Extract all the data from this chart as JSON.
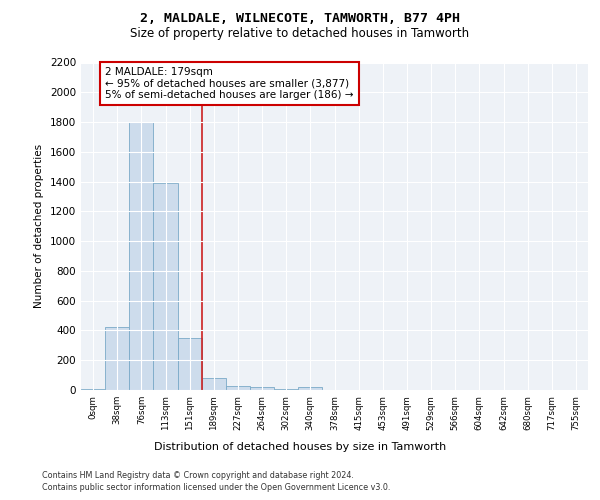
{
  "title1": "2, MALDALE, WILNECOTE, TAMWORTH, B77 4PH",
  "title2": "Size of property relative to detached houses in Tamworth",
  "xlabel": "Distribution of detached houses by size in Tamworth",
  "ylabel": "Number of detached properties",
  "bar_labels": [
    "0sqm",
    "38sqm",
    "76sqm",
    "113sqm",
    "151sqm",
    "189sqm",
    "227sqm",
    "264sqm",
    "302sqm",
    "340sqm",
    "378sqm",
    "415sqm",
    "453sqm",
    "491sqm",
    "529sqm",
    "566sqm",
    "604sqm",
    "642sqm",
    "680sqm",
    "717sqm",
    "755sqm"
  ],
  "bar_values": [
    10,
    420,
    1800,
    1390,
    350,
    80,
    30,
    20,
    10,
    20,
    0,
    0,
    0,
    0,
    0,
    0,
    0,
    0,
    0,
    0,
    0
  ],
  "bar_color": "#cddcec",
  "bar_edge_color": "#7aaac8",
  "annotation_text": "2 MALDALE: 179sqm\n← 95% of detached houses are smaller (3,877)\n5% of semi-detached houses are larger (186) →",
  "annotation_box_color": "#ffffff",
  "annotation_box_edge": "#cc0000",
  "vline_x": 4.5,
  "vline_color": "#cc2222",
  "ylim": [
    0,
    2200
  ],
  "yticks": [
    0,
    200,
    400,
    600,
    800,
    1000,
    1200,
    1400,
    1600,
    1800,
    2000,
    2200
  ],
  "bg_color": "#eef2f7",
  "grid_color": "#ffffff",
  "footer1": "Contains HM Land Registry data © Crown copyright and database right 2024.",
  "footer2": "Contains public sector information licensed under the Open Government Licence v3.0."
}
